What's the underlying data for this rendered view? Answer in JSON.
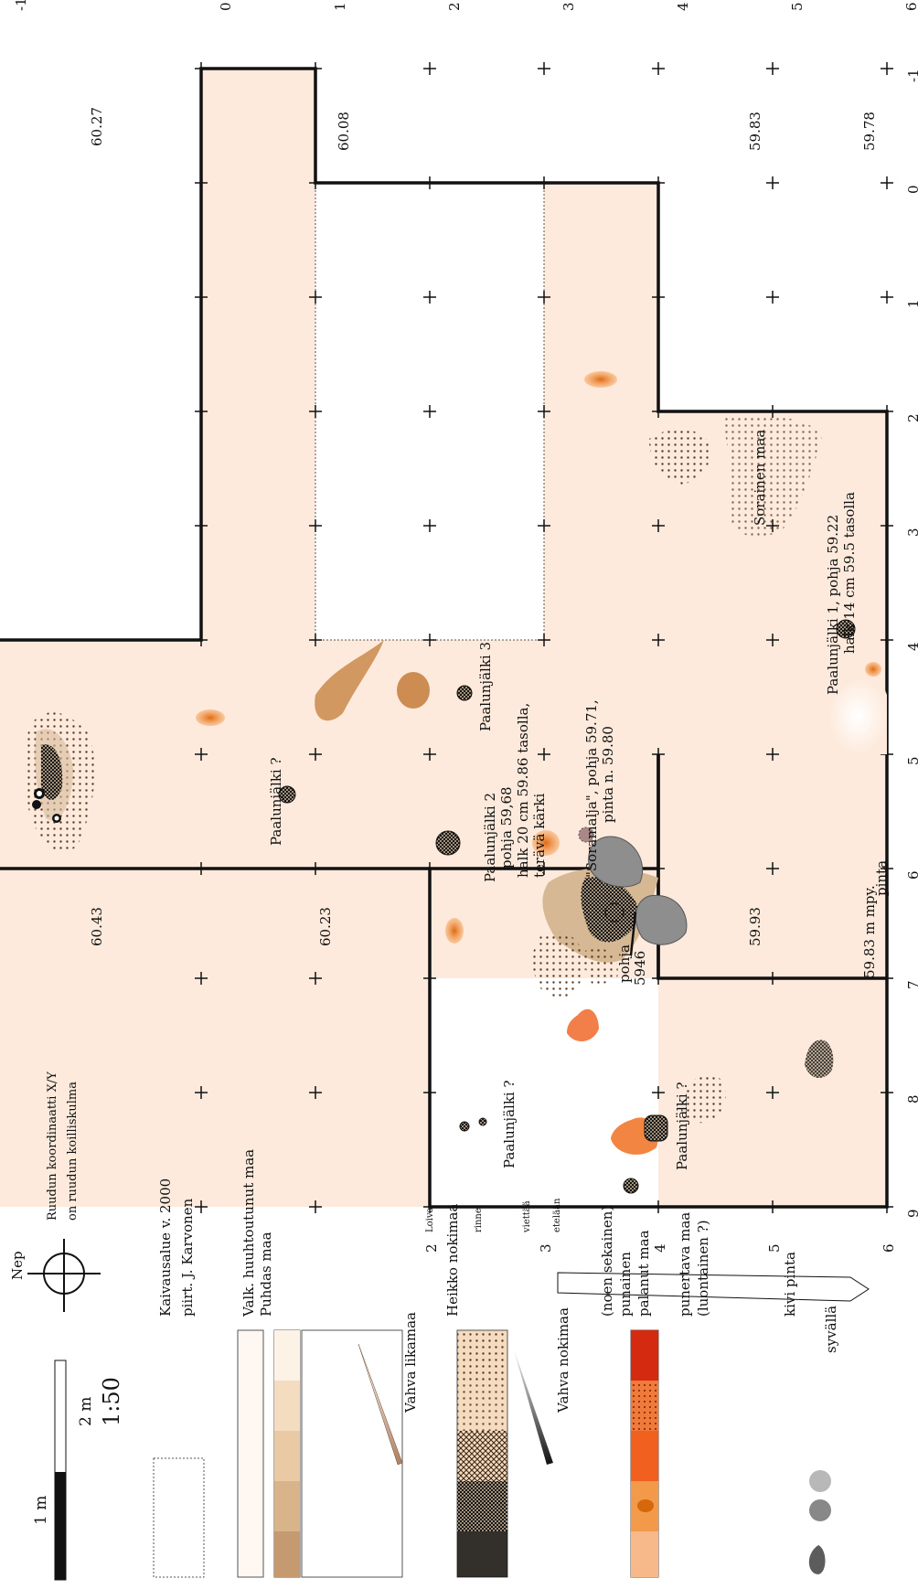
{
  "axes": {
    "top": [
      "-1",
      "0",
      "1",
      "2",
      "3",
      "4",
      "5",
      "6"
    ],
    "right": [
      "-1",
      "0",
      "1",
      "2",
      "3",
      "4",
      "5",
      "6",
      "7",
      "8",
      "9"
    ],
    "left": [
      "2",
      "3",
      "4",
      "5",
      "6"
    ],
    "bottom": [
      "9",
      "8",
      "7",
      "6",
      "5",
      "4",
      "3",
      "2"
    ]
  },
  "elevations": {
    "e1": "60.27",
    "e2": "60.08",
    "e3": "59.83",
    "e4": "59.78",
    "e5": "60.43",
    "e6": "60.23",
    "e7": "59.93",
    "e8": "59.83 m mpy.",
    "e9": "pinta"
  },
  "features": {
    "p1": "Paalunjälki 1, pohja 59.22",
    "p1b": "halk 14 cm 59.5 tasolla",
    "sorainen": "Sorainen maa",
    "p3": "Paalunjälki 3",
    "p2a": "Paalunjälki 2",
    "p2b": "pohja 59,68",
    "p2c": "halk 20 cm 59.86 tasolla,",
    "p2d": "terävä kärki",
    "sor1": "\"Soramalja\", pohja 59.71,",
    "sor2": "pinta n. 59.80",
    "pq1": "Paalunjälki ?",
    "pq2": "Paalunjälki ?",
    "pq3": "Paalunjälki ?",
    "pohja1": "pohja",
    "pohja2": "5946"
  },
  "info": {
    "coord1": "Ruudun koordinaatti X/Y",
    "coord2": "on ruudun koilliskulma",
    "north": "Nep",
    "slope": [
      "Loiva",
      "rinne",
      "viettää",
      "etelään"
    ],
    "area1": "Kaivausalue v. 2000",
    "area2": "piirt. J. Karvonen",
    "scale_1m": "1 m",
    "scale_2m": "2 m",
    "scale_ratio": "1:50"
  },
  "legend": {
    "valk": "Valk. huuhtoutunut maa",
    "puhdas": "Puhdas maa",
    "vahva_lika": "Vahva likamaa",
    "heikko_noki": "Heikko nokimaa",
    "vahva_noki": "Vahva nokimaa",
    "noen": "(noen sekainen)",
    "punainen": "punainen",
    "palanut": "palanut maa",
    "punertava": "punertava maa",
    "luontainen": "(luontainen ?)",
    "kivi": "kivi pinta",
    "syvalla": "syvällä"
  },
  "colors": {
    "soil": "#fdeadc",
    "dark_soil": "#d9b28c",
    "orange": "#f08a24",
    "stone": "#9a9a9a",
    "soot": "#1a1a1a"
  }
}
